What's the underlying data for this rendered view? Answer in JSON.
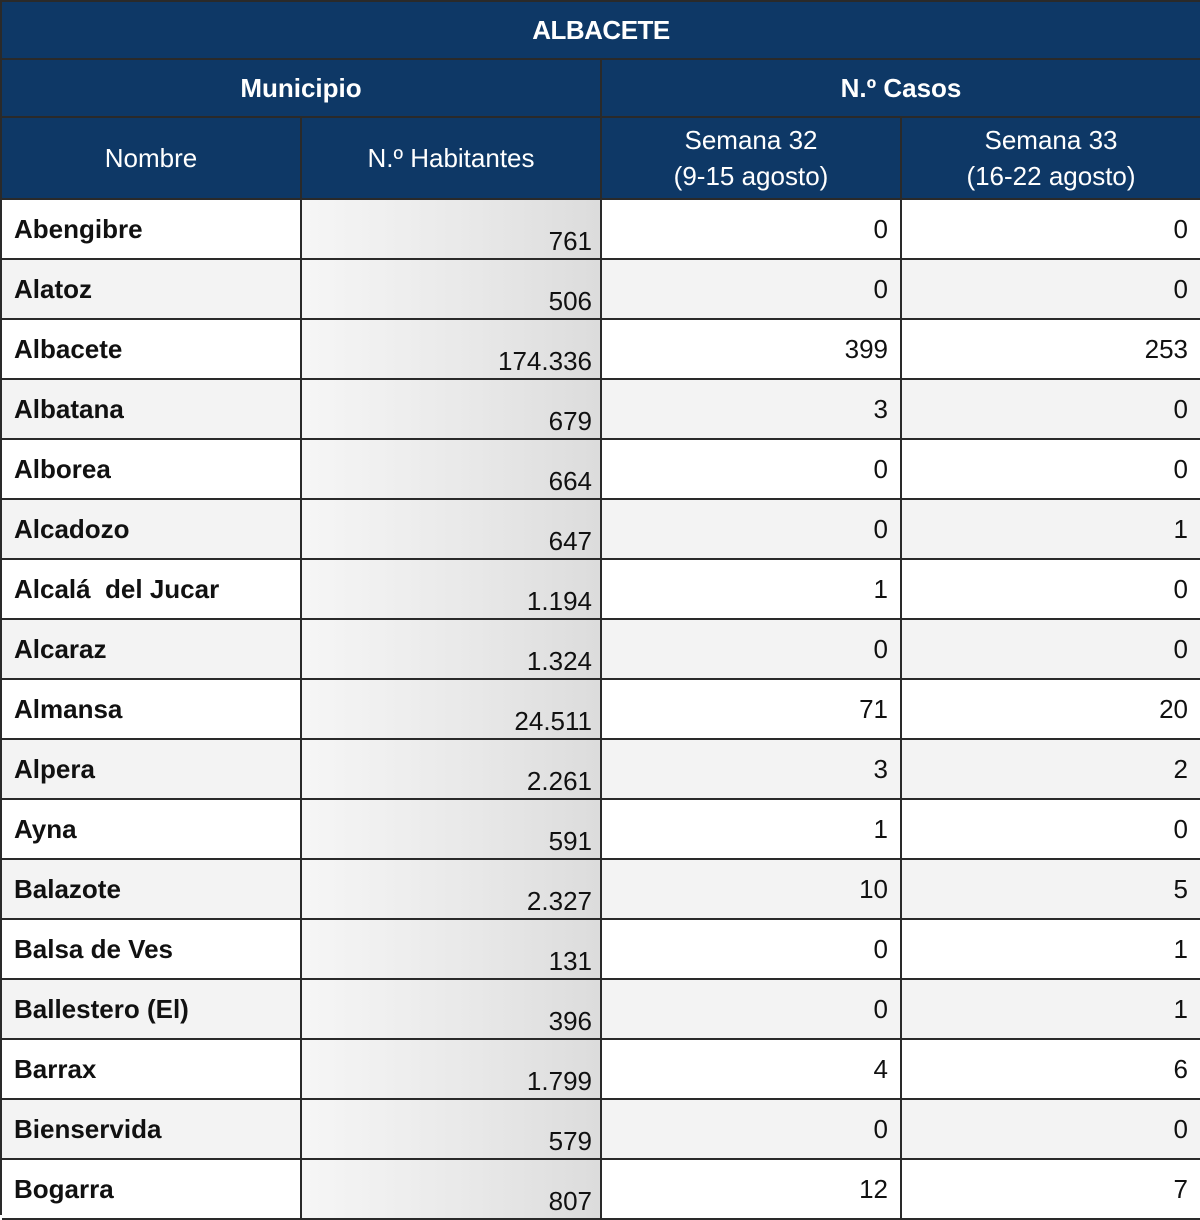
{
  "table": {
    "title": "ALBACETE",
    "group_municipio": "Municipio",
    "group_casos": "N.º Casos",
    "col_nombre": "Nombre",
    "col_habitantes": "N.º Habitantes",
    "col_s32_line1": "Semana 32",
    "col_s32_line2": "(9-15 agosto)",
    "col_s33_line1": "Semana 33",
    "col_s33_line2": "(16-22 agosto)",
    "rows": [
      {
        "nombre": "Abengibre",
        "habitantes": "761",
        "s32": "0",
        "s33": "0"
      },
      {
        "nombre": "Alatoz",
        "habitantes": "506",
        "s32": "0",
        "s33": "0"
      },
      {
        "nombre": "Albacete",
        "habitantes": "174.336",
        "s32": "399",
        "s33": "253"
      },
      {
        "nombre": "Albatana",
        "habitantes": "679",
        "s32": "3",
        "s33": "0"
      },
      {
        "nombre": "Alborea",
        "habitantes": "664",
        "s32": "0",
        "s33": "0"
      },
      {
        "nombre": "Alcadozo",
        "habitantes": "647",
        "s32": "0",
        "s33": "1"
      },
      {
        "nombre": "Alcalá  del Jucar",
        "habitantes": "1.194",
        "s32": "1",
        "s33": "0"
      },
      {
        "nombre": "Alcaraz",
        "habitantes": "1.324",
        "s32": "0",
        "s33": "0"
      },
      {
        "nombre": "Almansa",
        "habitantes": "24.511",
        "s32": "71",
        "s33": "20"
      },
      {
        "nombre": "Alpera",
        "habitantes": "2.261",
        "s32": "3",
        "s33": "2"
      },
      {
        "nombre": "Ayna",
        "habitantes": "591",
        "s32": "1",
        "s33": "0"
      },
      {
        "nombre": "Balazote",
        "habitantes": "2.327",
        "s32": "10",
        "s33": "5"
      },
      {
        "nombre": "Balsa de Ves",
        "habitantes": "131",
        "s32": "0",
        "s33": "1"
      },
      {
        "nombre": "Ballestero (El)",
        "habitantes": "396",
        "s32": "0",
        "s33": "1"
      },
      {
        "nombre": "Barrax",
        "habitantes": "1.799",
        "s32": "4",
        "s33": "6"
      },
      {
        "nombre": "Bienservida",
        "habitantes": "579",
        "s32": "0",
        "s33": "0"
      },
      {
        "nombre": "Bogarra",
        "habitantes": "807",
        "s32": "12",
        "s33": "7"
      }
    ]
  }
}
